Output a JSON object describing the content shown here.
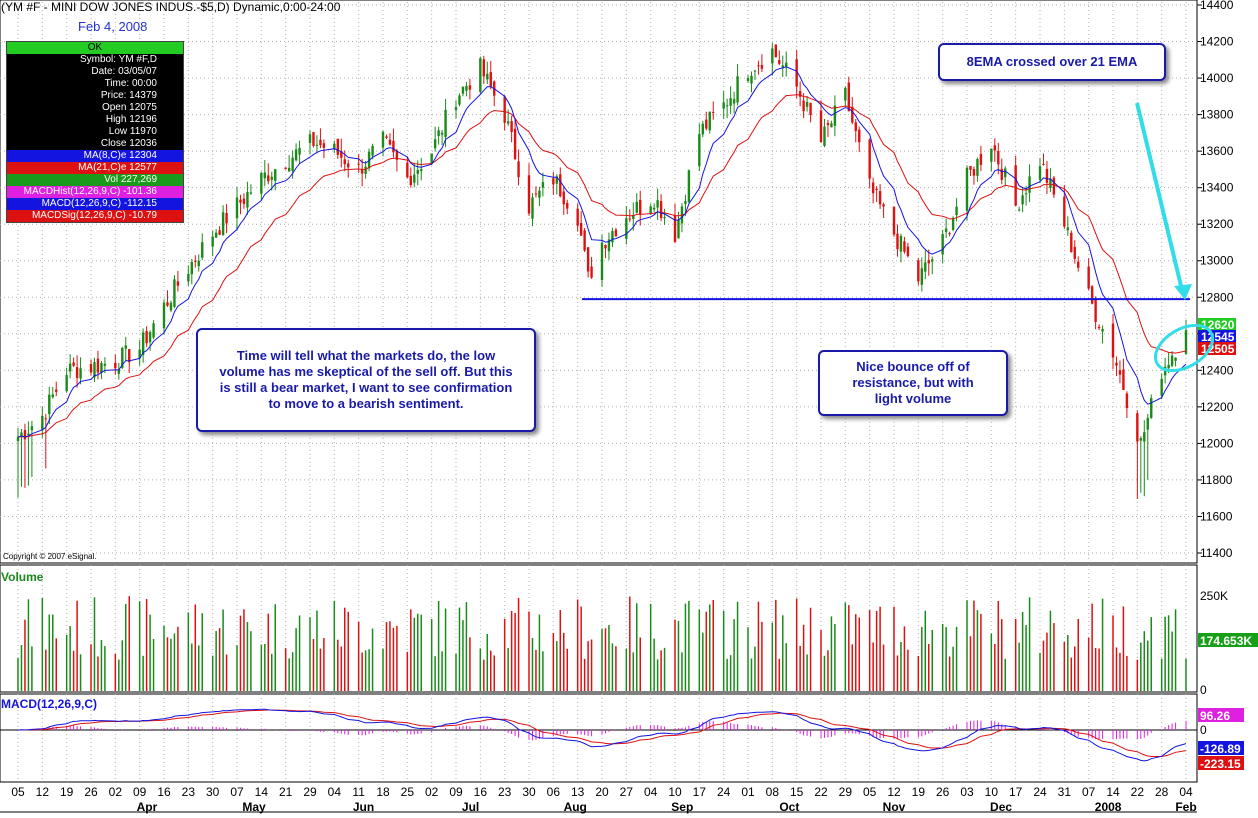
{
  "header": {
    "title": "(YM #F - MINI DOW JONES INDUS.-$5,D) Dynamic,0:00-24:00",
    "date_label": "Feb 4, 2008",
    "copyright": "Copyright © 2007 eSignal."
  },
  "info_box": {
    "status": "OK",
    "rows": [
      {
        "label": "Symbol:",
        "value": "YM #F,D",
        "style": "plain"
      },
      {
        "label": "Date:",
        "value": "03/05/07",
        "style": "plain"
      },
      {
        "label": "Time:",
        "value": "00:00",
        "style": "plain"
      },
      {
        "label": "Price:",
        "value": "14379",
        "style": "plain"
      },
      {
        "label": "Open",
        "value": "12075",
        "style": "plain"
      },
      {
        "label": "High",
        "value": "12196",
        "style": "plain"
      },
      {
        "label": "Low",
        "value": "11970",
        "style": "plain"
      },
      {
        "label": "Close",
        "value": "12036",
        "style": "plain"
      },
      {
        "label": "MA(8,C)e",
        "value": "12304",
        "style": "blue"
      },
      {
        "label": "MA(21,C)e",
        "value": "12577",
        "style": "red"
      },
      {
        "label": "Vol",
        "value": "227,269",
        "style": "green"
      },
      {
        "label": "MACDHist(12,26,9,C)",
        "value": "-101.36",
        "style": "mag"
      },
      {
        "label": "MACD(12,26,9,C)",
        "value": "-112.15",
        "style": "blue"
      },
      {
        "label": "MACDSig(12,26,9,C)",
        "value": "-10.79",
        "style": "red"
      }
    ]
  },
  "annotations": {
    "ema_note": "8EMA crossed over 21 EMA",
    "main_note": "Time will tell what the markets do, the low volume has me skeptical of the sell off. But this is still a bear market, I want to see confirmation to move to a bearish sentiment.",
    "bounce_note": "Nice bounce off of resistance, but with light volume"
  },
  "panes": {
    "volume_label": "Volume",
    "macd_label": "MACD(12,26,9,C)"
  },
  "colors": {
    "up": "#1a8a1a",
    "down": "#dd1111",
    "ema8": "#1414e0",
    "ema21": "#dd1111",
    "support_line": "#1414e0",
    "arrow": "#33dde8",
    "macd_hist": "#e020e0",
    "grid": "#b0b0b0",
    "text_blue": "#1a1aa8"
  },
  "chart_data": [
    {
      "type": "candlestick",
      "title": "(YM #F - MINI DOW JONES INDUS.-$5,D) Dynamic,0:00-24:00",
      "ylim": [
        11400,
        14400
      ],
      "yticks": [
        11400,
        11600,
        11800,
        12000,
        12200,
        12400,
        12600,
        12800,
        13000,
        13200,
        13400,
        13600,
        13800,
        14000,
        14200,
        14400
      ],
      "x_tick_labels": [
        "05",
        "12",
        "19",
        "26",
        "02",
        "09",
        "16",
        "23",
        "30",
        "07",
        "14",
        "21",
        "29",
        "04",
        "11",
        "18",
        "25",
        "02",
        "09",
        "16",
        "23",
        "30",
        "06",
        "13",
        "20",
        "27",
        "04",
        "10",
        "17",
        "24",
        "01",
        "08",
        "15",
        "22",
        "29",
        "05",
        "12",
        "19",
        "26",
        "03",
        "10",
        "17",
        "24",
        "31",
        "07",
        "14",
        "22",
        "28",
        "04"
      ],
      "month_labels": [
        "Apr",
        "May",
        "Jun",
        "Jul",
        "Aug",
        "Sep",
        "Oct",
        "Nov",
        "Dec",
        "2008",
        "Feb"
      ],
      "price_anchors": [
        {
          "date": "2007-03-05",
          "close": 12036
        },
        {
          "date": "2007-03-12",
          "close": 12150
        },
        {
          "date": "2007-03-19",
          "close": 12400
        },
        {
          "date": "2007-03-26",
          "close": 12420
        },
        {
          "date": "2007-04-02",
          "close": 12450
        },
        {
          "date": "2007-04-09",
          "close": 12520
        },
        {
          "date": "2007-04-16",
          "close": 12750
        },
        {
          "date": "2007-04-23",
          "close": 12960
        },
        {
          "date": "2007-04-30",
          "close": 13150
        },
        {
          "date": "2007-05-07",
          "close": 13300
        },
        {
          "date": "2007-05-14",
          "close": 13450
        },
        {
          "date": "2007-05-21",
          "close": 13550
        },
        {
          "date": "2007-05-29",
          "close": 13650
        },
        {
          "date": "2007-06-04",
          "close": 13600
        },
        {
          "date": "2007-06-11",
          "close": 13500
        },
        {
          "date": "2007-06-18",
          "close": 13650
        },
        {
          "date": "2007-06-25",
          "close": 13450
        },
        {
          "date": "2007-07-02",
          "close": 13600
        },
        {
          "date": "2007-07-09",
          "close": 13900
        },
        {
          "date": "2007-07-16",
          "close": 14050
        },
        {
          "date": "2007-07-23",
          "close": 13800
        },
        {
          "date": "2007-07-30",
          "close": 13300
        },
        {
          "date": "2007-08-06",
          "close": 13450
        },
        {
          "date": "2007-08-13",
          "close": 13250
        },
        {
          "date": "2007-08-16",
          "close": 12900
        },
        {
          "date": "2007-08-20",
          "close": 13100
        },
        {
          "date": "2007-08-27",
          "close": 13250
        },
        {
          "date": "2007-09-04",
          "close": 13350
        },
        {
          "date": "2007-09-10",
          "close": 13150
        },
        {
          "date": "2007-09-17",
          "close": 13700
        },
        {
          "date": "2007-09-24",
          "close": 13850
        },
        {
          "date": "2007-10-01",
          "close": 14050
        },
        {
          "date": "2007-10-08",
          "close": 14150
        },
        {
          "date": "2007-10-15",
          "close": 13950
        },
        {
          "date": "2007-10-22",
          "close": 13650
        },
        {
          "date": "2007-10-29",
          "close": 13900
        },
        {
          "date": "2007-11-05",
          "close": 13400
        },
        {
          "date": "2007-11-12",
          "close": 13150
        },
        {
          "date": "2007-11-19",
          "close": 12900
        },
        {
          "date": "2007-11-26",
          "close": 13100
        },
        {
          "date": "2007-12-03",
          "close": 13450
        },
        {
          "date": "2007-12-10",
          "close": 13650
        },
        {
          "date": "2007-12-17",
          "close": 13300
        },
        {
          "date": "2007-12-24",
          "close": 13550
        },
        {
          "date": "2007-12-31",
          "close": 13200
        },
        {
          "date": "2008-01-07",
          "close": 12800
        },
        {
          "date": "2008-01-14",
          "close": 12500
        },
        {
          "date": "2008-01-22",
          "close": 12000
        },
        {
          "date": "2008-01-28",
          "close": 12400
        },
        {
          "date": "2008-02-04",
          "close": 12620
        }
      ],
      "support_level": 12790,
      "last_price_labels": [
        {
          "value": "12620",
          "color": "#22cc22"
        },
        {
          "value": "12545",
          "color": "#1414e0"
        },
        {
          "value": "12505",
          "color": "#dd1111"
        }
      ]
    },
    {
      "type": "bar",
      "title": "Volume",
      "yticks": [
        {
          "value": 0,
          "label": "0"
        },
        {
          "value": 250000,
          "label": "250K"
        }
      ],
      "last_value_label": "174.653K"
    },
    {
      "type": "line",
      "title": "MACD(12,26,9,C)",
      "series": [
        {
          "name": "MACD"
        },
        {
          "name": "Signal"
        },
        {
          "name": "Histogram"
        }
      ],
      "yticks": [
        {
          "value": 0,
          "label": "0"
        }
      ],
      "last_value_labels": [
        {
          "value": "96.26",
          "color": "#e020e0"
        },
        {
          "value": "-126.89",
          "color": "#1414e0"
        },
        {
          "value": "-223.15",
          "color": "#dd1111"
        }
      ]
    }
  ]
}
